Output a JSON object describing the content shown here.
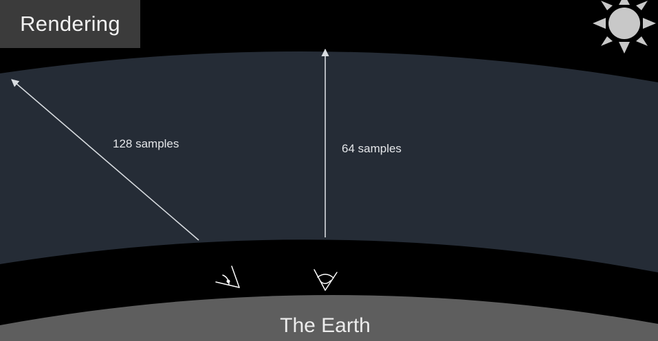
{
  "title": "Rendering",
  "labels": {
    "ray_slanted": "128 samples",
    "ray_vertical": "64 samples",
    "ground": "The Earth"
  },
  "colors": {
    "background": "#000000",
    "atmosphere": "#252c36",
    "earth": "#5e5e5e",
    "sun": "#c8c8c8",
    "title_box": "#3b3b3b",
    "rays": "#d8dce0"
  },
  "icons": {
    "sun": "sun-icon",
    "viewer_slanted": "eye-angled-icon",
    "viewer_vertical": "eye-up-icon"
  }
}
